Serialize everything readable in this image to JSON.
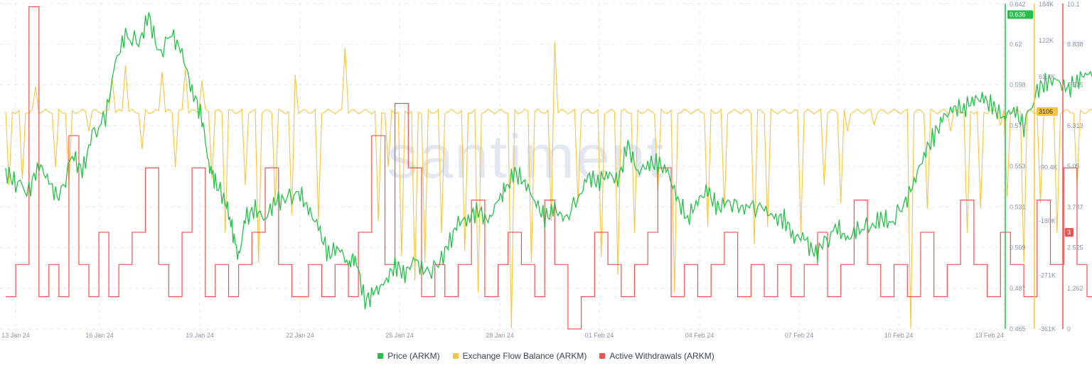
{
  "colors": {
    "price": "#26c04b",
    "flow": "#f5c542",
    "withdrawals": "#ef5350",
    "grid": "#e6e9ee",
    "tick_text": "#8a92a6",
    "watermark": "#e3e7f1"
  },
  "watermark": "santiment",
  "chart_data": {
    "type": "line",
    "x_ticks": [
      "13 Jan 24",
      "16 Jan 24",
      "19 Jan 24",
      "22 Jan 24",
      "25 Jan 24",
      "28 Jan 24",
      "01 Feb 24",
      "04 Feb 24",
      "07 Feb 24",
      "10 Feb 24",
      "13 Feb 24"
    ],
    "grid": true,
    "legend_position": "bottom-center",
    "axes": {
      "price": {
        "ticks": [
          "0.642",
          "0.62",
          "0.598",
          "0.576",
          "0.553",
          "0.531",
          "0.509",
          "0.487",
          "0.465"
        ],
        "range": [
          0.465,
          0.642
        ]
      },
      "flow": {
        "ticks": [
          "184K",
          "122K",
          "61.4K",
          "-90.4K",
          "-180K",
          "-271K",
          "-361K"
        ],
        "range": [
          -361000,
          184000
        ]
      },
      "withdrawals": {
        "ticks": [
          "10.1",
          "8.838",
          "7.575",
          "6.313",
          "5.05",
          "3.787",
          "2.525",
          "1.262",
          "0"
        ],
        "range": [
          0,
          10.1
        ]
      }
    },
    "series": [
      {
        "name": "Price (ARKM)",
        "axis": "price",
        "last_label": "0.636",
        "anchors": [
          [
            0,
            0.55
          ],
          [
            0.3,
            0.545
          ],
          [
            0.7,
            0.54
          ],
          [
            1,
            0.555
          ],
          [
            1.3,
            0.545
          ],
          [
            1.6,
            0.535
          ],
          [
            2,
            0.56
          ],
          [
            2.3,
            0.55
          ],
          [
            2.6,
            0.57
          ],
          [
            3,
            0.58
          ],
          [
            3.3,
            0.61
          ],
          [
            3.6,
            0.625
          ],
          [
            4,
            0.62
          ],
          [
            4.3,
            0.635
          ],
          [
            4.6,
            0.615
          ],
          [
            5,
            0.625
          ],
          [
            5.3,
            0.615
          ],
          [
            5.6,
            0.595
          ],
          [
            5.9,
            0.58
          ],
          [
            6.1,
            0.555
          ],
          [
            6.3,
            0.545
          ],
          [
            6.6,
            0.535
          ],
          [
            6.8,
            0.52
          ],
          [
            7,
            0.503
          ],
          [
            7.2,
            0.525
          ],
          [
            7.5,
            0.53
          ],
          [
            7.8,
            0.525
          ],
          [
            8.1,
            0.535
          ],
          [
            8.4,
            0.535
          ],
          [
            8.8,
            0.54
          ],
          [
            9.1,
            0.53
          ],
          [
            9.4,
            0.52
          ],
          [
            9.7,
            0.505
          ],
          [
            10,
            0.51
          ],
          [
            10.3,
            0.5
          ],
          [
            10.5,
            0.505
          ],
          [
            10.8,
            0.48
          ],
          [
            11.1,
            0.485
          ],
          [
            11.4,
            0.49
          ],
          [
            11.7,
            0.5
          ],
          [
            12,
            0.495
          ],
          [
            12.3,
            0.503
          ],
          [
            12.6,
            0.495
          ],
          [
            13,
            0.5
          ],
          [
            13.3,
            0.51
          ],
          [
            13.6,
            0.523
          ],
          [
            13.9,
            0.525
          ],
          [
            14.2,
            0.53
          ],
          [
            14.5,
            0.523
          ],
          [
            14.8,
            0.535
          ],
          [
            15,
            0.54
          ],
          [
            15.3,
            0.55
          ],
          [
            15.6,
            0.545
          ],
          [
            15.9,
            0.535
          ],
          [
            16.2,
            0.525
          ],
          [
            16.5,
            0.53
          ],
          [
            16.8,
            0.525
          ],
          [
            17.2,
            0.535
          ],
          [
            17.5,
            0.548
          ],
          [
            17.8,
            0.545
          ],
          [
            18.1,
            0.55
          ],
          [
            18.4,
            0.545
          ],
          [
            18.7,
            0.565
          ],
          [
            19,
            0.55
          ],
          [
            19.3,
            0.555
          ],
          [
            19.6,
            0.555
          ],
          [
            19.9,
            0.55
          ],
          [
            20.2,
            0.535
          ],
          [
            20.5,
            0.525
          ],
          [
            20.8,
            0.535
          ],
          [
            21.1,
            0.54
          ],
          [
            21.4,
            0.53
          ],
          [
            21.7,
            0.535
          ],
          [
            22.1,
            0.53
          ],
          [
            22.4,
            0.532
          ],
          [
            22.8,
            0.53
          ],
          [
            23.1,
            0.525
          ],
          [
            23.4,
            0.525
          ],
          [
            23.7,
            0.515
          ],
          [
            24,
            0.515
          ],
          [
            24.3,
            0.505
          ],
          [
            24.6,
            0.512
          ],
          [
            25,
            0.52
          ],
          [
            25.3,
            0.513
          ],
          [
            25.6,
            0.52
          ],
          [
            26,
            0.52
          ],
          [
            26.3,
            0.525
          ],
          [
            26.6,
            0.523
          ],
          [
            27,
            0.532
          ],
          [
            27.3,
            0.545
          ],
          [
            27.6,
            0.56
          ],
          [
            27.9,
            0.57
          ],
          [
            28.2,
            0.58
          ],
          [
            28.5,
            0.585
          ],
          [
            28.8,
            0.585
          ],
          [
            29.1,
            0.59
          ],
          [
            29.4,
            0.59
          ],
          [
            29.7,
            0.585
          ],
          [
            30,
            0.58
          ],
          [
            30.3,
            0.585
          ],
          [
            30.6,
            0.575
          ],
          [
            31,
            0.595
          ],
          [
            31.3,
            0.6
          ],
          [
            31.6,
            0.6
          ],
          [
            31.9,
            0.595
          ],
          [
            32.2,
            0.6
          ],
          [
            32.5,
            0.605
          ],
          [
            32.8,
            0.6
          ],
          [
            33.1,
            0.603
          ],
          [
            33.4,
            0.613
          ],
          [
            33.7,
            0.607
          ],
          [
            34,
            0.608
          ],
          [
            34.3,
            0.6
          ],
          [
            34.6,
            0.6
          ],
          [
            35,
            0.605
          ],
          [
            35.3,
            0.605
          ],
          [
            35.6,
            0.6
          ],
          [
            35.9,
            0.605
          ],
          [
            36.2,
            0.6
          ],
          [
            36.5,
            0.61
          ],
          [
            36.8,
            0.625
          ],
          [
            37.1,
            0.625
          ],
          [
            37.4,
            0.62
          ],
          [
            37.7,
            0.625
          ],
          [
            38,
            0.62
          ],
          [
            38.3,
            0.636
          ]
        ]
      },
      {
        "name": "Exchange Flow Balance (ARKM)",
        "axis": "flow",
        "last_label": "3106",
        "baseline": 3106,
        "spikes": [
          [
            0.1,
            -120000
          ],
          [
            0.5,
            -110000
          ],
          [
            0.9,
            45000
          ],
          [
            1.5,
            -90000
          ],
          [
            1.9,
            -120000
          ],
          [
            2.5,
            -30000
          ],
          [
            3.2,
            60000
          ],
          [
            3.6,
            80000
          ],
          [
            4.1,
            -60000
          ],
          [
            4.7,
            70000
          ],
          [
            5.1,
            -90000
          ],
          [
            5.4,
            75000
          ],
          [
            5.9,
            55000
          ],
          [
            6.2,
            -110000
          ],
          [
            6.6,
            -200000
          ],
          [
            7.2,
            -120000
          ],
          [
            7.6,
            -250000
          ],
          [
            8.1,
            -150000
          ],
          [
            8.6,
            -170000
          ],
          [
            8.7,
            65000
          ],
          [
            9.4,
            -180000
          ],
          [
            10.2,
            110000
          ],
          [
            11.2,
            -180000
          ],
          [
            11.5,
            -90000
          ],
          [
            11.9,
            -240000
          ],
          [
            12.3,
            -280000
          ],
          [
            12.6,
            -250000
          ],
          [
            13.1,
            -200000
          ],
          [
            13.8,
            -230000
          ],
          [
            14.2,
            -300000
          ],
          [
            15.2,
            -360000
          ],
          [
            15.8,
            -250000
          ],
          [
            16.4,
            -180000
          ],
          [
            16.5,
            120000
          ],
          [
            17.2,
            -150000
          ],
          [
            17.9,
            -240000
          ],
          [
            18.4,
            -270000
          ],
          [
            18.9,
            -200000
          ],
          [
            19.6,
            -130000
          ],
          [
            20.1,
            -300000
          ],
          [
            21.1,
            -190000
          ],
          [
            21.6,
            -160000
          ],
          [
            22.5,
            -220000
          ],
          [
            22.9,
            -190000
          ],
          [
            23.9,
            -200000
          ],
          [
            24.6,
            -120000
          ],
          [
            25.1,
            -150000
          ],
          [
            25.3,
            -30000
          ],
          [
            26.1,
            -20000
          ],
          [
            27.2,
            -360000
          ],
          [
            27.7,
            -160000
          ],
          [
            28.4,
            -30000
          ],
          [
            28.9,
            -200000
          ],
          [
            29.3,
            -160000
          ],
          [
            29.9,
            -20000
          ],
          [
            30.1,
            -140000
          ],
          [
            30.6,
            -250000
          ],
          [
            31.1,
            -150000
          ],
          [
            31.6,
            -200000
          ],
          [
            32.2,
            -120000
          ],
          [
            33.2,
            -250000
          ],
          [
            33.8,
            -300000
          ],
          [
            34.2,
            -150000
          ],
          [
            34.6,
            -130000
          ],
          [
            35.3,
            -280000
          ],
          [
            35.9,
            -200000
          ],
          [
            36.3,
            -280000
          ],
          [
            36.5,
            -350000
          ],
          [
            36.9,
            -210000
          ],
          [
            37.3,
            -90000
          ],
          [
            37.6,
            -120000
          ],
          [
            38.1,
            -140000
          ]
        ]
      },
      {
        "name": "Active Withdrawals (ARKM)",
        "axis": "withdrawals",
        "last_label": "3",
        "anchors": [
          [
            0,
            1
          ],
          [
            0.3,
            2
          ],
          [
            0.7,
            10
          ],
          [
            1,
            1
          ],
          [
            1.3,
            2
          ],
          [
            1.6,
            1
          ],
          [
            1.9,
            6
          ],
          [
            2.2,
            2
          ],
          [
            2.5,
            1
          ],
          [
            2.8,
            3
          ],
          [
            3.1,
            1
          ],
          [
            3.4,
            2
          ],
          [
            3.8,
            3
          ],
          [
            4.2,
            5
          ],
          [
            4.6,
            2
          ],
          [
            4.9,
            1
          ],
          [
            5.3,
            3
          ],
          [
            5.6,
            5
          ],
          [
            6,
            1
          ],
          [
            6.3,
            2
          ],
          [
            6.7,
            1
          ],
          [
            7,
            2
          ],
          [
            7.4,
            3
          ],
          [
            7.8,
            5
          ],
          [
            8.2,
            2
          ],
          [
            8.6,
            1
          ],
          [
            9.1,
            2
          ],
          [
            9.5,
            1
          ],
          [
            9.9,
            2
          ],
          [
            10.3,
            1
          ],
          [
            10.6,
            3
          ],
          [
            11,
            6
          ],
          [
            11.4,
            2
          ],
          [
            11.7,
            7
          ],
          [
            12.1,
            5
          ],
          [
            12.5,
            1
          ],
          [
            12.9,
            2
          ],
          [
            13.2,
            1
          ],
          [
            13.6,
            2
          ],
          [
            14,
            4
          ],
          [
            14.4,
            1
          ],
          [
            14.8,
            2
          ],
          [
            15.1,
            3
          ],
          [
            15.5,
            2
          ],
          [
            15.9,
            1
          ],
          [
            16.2,
            4
          ],
          [
            16.5,
            2
          ],
          [
            16.9,
            0
          ],
          [
            17.3,
            1
          ],
          [
            17.7,
            3
          ],
          [
            18.1,
            2
          ],
          [
            18.5,
            1
          ],
          [
            18.9,
            2
          ],
          [
            19.3,
            3
          ],
          [
            19.6,
            5
          ],
          [
            20,
            1
          ],
          [
            20.4,
            2
          ],
          [
            20.8,
            1
          ],
          [
            21.2,
            2
          ],
          [
            21.6,
            3
          ],
          [
            22,
            1
          ],
          [
            22.4,
            2
          ],
          [
            22.8,
            1
          ],
          [
            23.2,
            2
          ],
          [
            23.6,
            1
          ],
          [
            24,
            2
          ],
          [
            24.4,
            3
          ],
          [
            24.7,
            1
          ],
          [
            25.1,
            2
          ],
          [
            25.5,
            4
          ],
          [
            25.9,
            2
          ],
          [
            26.3,
            1
          ],
          [
            26.7,
            2
          ],
          [
            27.1,
            1
          ],
          [
            27.5,
            3
          ],
          [
            27.9,
            1
          ],
          [
            28.3,
            2
          ],
          [
            28.7,
            4
          ],
          [
            29.1,
            2
          ],
          [
            29.5,
            1
          ],
          [
            29.9,
            3
          ],
          [
            30.2,
            2
          ],
          [
            30.6,
            1
          ],
          [
            31,
            4
          ],
          [
            31.4,
            2
          ],
          [
            31.8,
            5
          ],
          [
            32.2,
            2
          ],
          [
            32.5,
            1
          ],
          [
            32.9,
            3
          ],
          [
            33.3,
            6
          ],
          [
            33.6,
            2
          ],
          [
            34,
            1
          ],
          [
            34.4,
            4
          ],
          [
            34.8,
            2
          ],
          [
            35.1,
            1
          ],
          [
            35.5,
            3
          ],
          [
            35.9,
            2
          ],
          [
            36.2,
            7
          ],
          [
            36.5,
            1
          ],
          [
            36.9,
            8
          ],
          [
            37.2,
            2
          ],
          [
            37.6,
            3
          ],
          [
            38,
            1
          ],
          [
            38.3,
            3
          ]
        ]
      }
    ]
  }
}
